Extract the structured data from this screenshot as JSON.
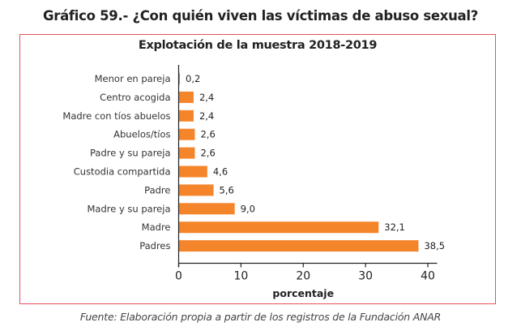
{
  "header": {
    "title": "Gráfico 59.- ¿Con quién viven las víctimas de abuso sexual?"
  },
  "footer": {
    "source": "Fuente: Elaboración propia a partir de los registros de la Fundación ANAR"
  },
  "colors": {
    "bar": "#f5852b",
    "frame": "#e8505b",
    "axis": "#222222"
  },
  "chart_data": {
    "type": "bar",
    "orientation": "horizontal",
    "title": "Explotación de la muestra 2018-2019",
    "xlabel": "porcentaje",
    "ylabel": "",
    "categories": [
      "Menor en pareja",
      "Centro acogida",
      "Madre con tíos abuelos",
      "Abuelos/tíos",
      "Padre y su pareja",
      "Custodia compartida",
      "Padre",
      "Madre y su pareja",
      "Madre",
      "Padres"
    ],
    "values": [
      0.2,
      2.4,
      2.4,
      2.6,
      2.6,
      4.6,
      5.6,
      9.0,
      32.1,
      38.5
    ],
    "value_labels": [
      "0,2",
      "2,4",
      "2,4",
      "2,6",
      "2,6",
      "4,6",
      "5,6",
      "9,0",
      "32,1",
      "38,5"
    ],
    "xlim": [
      0,
      41.5
    ],
    "xticks": [
      0,
      10,
      20,
      30,
      40
    ],
    "xtick_labels": [
      "0",
      "10",
      "20",
      "30",
      "40"
    ],
    "grid": false,
    "legend": "none"
  }
}
